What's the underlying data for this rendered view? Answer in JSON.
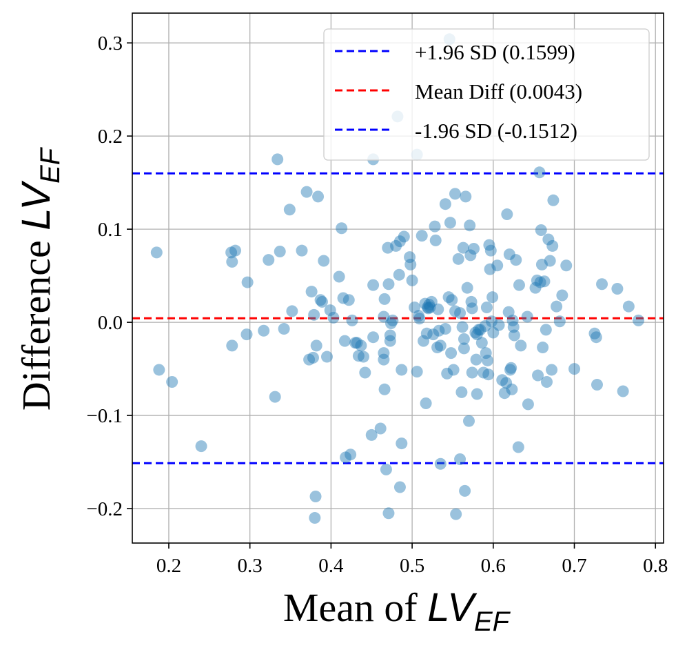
{
  "chart_data": {
    "type": "scatter",
    "title": "",
    "xlabel": {
      "prefix": "Mean of ",
      "var_main": "LV",
      "var_sub": "EF"
    },
    "ylabel": {
      "prefix": "Difference ",
      "var_main": "LV",
      "var_sub": "EF"
    },
    "xlim": [
      0.155,
      0.81
    ],
    "ylim": [
      -0.237,
      0.332
    ],
    "grid": true,
    "legend_position": "top-right",
    "xticks": [
      {
        "value": 0.2,
        "label": "0.2"
      },
      {
        "value": 0.3,
        "label": "0.3"
      },
      {
        "value": 0.4,
        "label": "0.4"
      },
      {
        "value": 0.5,
        "label": "0.5"
      },
      {
        "value": 0.6,
        "label": "0.6"
      },
      {
        "value": 0.7,
        "label": "0.7"
      },
      {
        "value": 0.8,
        "label": "0.8"
      }
    ],
    "yticks": [
      {
        "value": -0.2,
        "label": "−0.2"
      },
      {
        "value": -0.1,
        "label": "−0.1"
      },
      {
        "value": 0.0,
        "label": "0.0"
      },
      {
        "value": 0.1,
        "label": "0.1"
      },
      {
        "value": 0.2,
        "label": "0.2"
      },
      {
        "value": 0.3,
        "label": "0.3"
      }
    ],
    "reference_lines": [
      {
        "name": "+1.96 SD (0.1599)",
        "y": 0.1599,
        "color": "#0000ff"
      },
      {
        "name": "Mean Diff (0.0043)",
        "y": 0.0043,
        "color": "#ff0000"
      },
      {
        "name": "-1.96 SD (-0.1512)",
        "y": -0.1512,
        "color": "#0000ff"
      }
    ],
    "series": [
      {
        "name": "points",
        "color": "#1f77b4",
        "points": [
          [
            0.185,
            0.075
          ],
          [
            0.188,
            -0.051
          ],
          [
            0.204,
            -0.064
          ],
          [
            0.24,
            -0.133
          ],
          [
            0.277,
            0.075
          ],
          [
            0.278,
            0.065
          ],
          [
            0.278,
            -0.025
          ],
          [
            0.282,
            0.077
          ],
          [
            0.296,
            -0.013
          ],
          [
            0.297,
            0.043
          ],
          [
            0.317,
            -0.009
          ],
          [
            0.323,
            0.067
          ],
          [
            0.331,
            -0.08
          ],
          [
            0.334,
            0.175
          ],
          [
            0.337,
            0.076
          ],
          [
            0.342,
            -0.007
          ],
          [
            0.349,
            0.121
          ],
          [
            0.352,
            0.012
          ],
          [
            0.364,
            0.077
          ],
          [
            0.37,
            0.14
          ],
          [
            0.373,
            -0.04
          ],
          [
            0.376,
            0.033
          ],
          [
            0.378,
            -0.038
          ],
          [
            0.379,
            0.008
          ],
          [
            0.38,
            -0.21
          ],
          [
            0.381,
            -0.187
          ],
          [
            0.382,
            -0.025
          ],
          [
            0.384,
            0.135
          ],
          [
            0.387,
            0.024
          ],
          [
            0.389,
            0.022
          ],
          [
            0.391,
            0.066
          ],
          [
            0.395,
            -0.037
          ],
          [
            0.399,
            0.013
          ],
          [
            0.403,
            0.005
          ],
          [
            0.41,
            0.049
          ],
          [
            0.413,
            0.101
          ],
          [
            0.415,
            0.026
          ],
          [
            0.417,
            -0.02
          ],
          [
            0.418,
            -0.145
          ],
          [
            0.422,
            0.024
          ],
          [
            0.424,
            -0.142
          ],
          [
            0.426,
            0.002
          ],
          [
            0.43,
            -0.022
          ],
          [
            0.432,
            -0.022
          ],
          [
            0.434,
            -0.036
          ],
          [
            0.437,
            -0.025
          ],
          [
            0.44,
            -0.037
          ],
          [
            0.442,
            -0.054
          ],
          [
            0.45,
            -0.121
          ],
          [
            0.452,
            0.04
          ],
          [
            0.452,
            -0.016
          ],
          [
            0.452,
            0.175
          ],
          [
            0.461,
            -0.114
          ],
          [
            0.465,
            0.006
          ],
          [
            0.465,
            -0.033
          ],
          [
            0.465,
            -0.04
          ],
          [
            0.466,
            0.025
          ],
          [
            0.466,
            -0.072
          ],
          [
            0.468,
            -0.158
          ],
          [
            0.47,
            0.08
          ],
          [
            0.471,
            -0.205
          ],
          [
            0.471,
            0.041
          ],
          [
            0.473,
            -0.02
          ],
          [
            0.473,
            -0.014
          ],
          [
            0.474,
            -0.001
          ],
          [
            0.476,
            0.002
          ],
          [
            0.48,
            0.082
          ],
          [
            0.482,
            0.221
          ],
          [
            0.484,
            0.051
          ],
          [
            0.485,
            -0.177
          ],
          [
            0.485,
            0.087
          ],
          [
            0.487,
            -0.13
          ],
          [
            0.487,
            -0.051
          ],
          [
            0.49,
            0.092
          ],
          [
            0.497,
            0.07
          ],
          [
            0.498,
            0.062
          ],
          [
            0.5,
            0.045
          ],
          [
            0.503,
            0.016
          ],
          [
            0.506,
            0.18
          ],
          [
            0.506,
            -0.053
          ],
          [
            0.508,
            0.007
          ],
          [
            0.509,
            0.004
          ],
          [
            0.512,
            0.093
          ],
          [
            0.514,
            -0.02
          ],
          [
            0.516,
            0.02
          ],
          [
            0.517,
            -0.087
          ],
          [
            0.518,
            -0.012
          ],
          [
            0.519,
            0.016
          ],
          [
            0.52,
            0.015
          ],
          [
            0.521,
            0.019
          ],
          [
            0.522,
            0.016
          ],
          [
            0.524,
            0.022
          ],
          [
            0.526,
            -0.013
          ],
          [
            0.528,
            0.103
          ],
          [
            0.529,
            0.088
          ],
          [
            0.531,
            -0.027
          ],
          [
            0.532,
            0.014
          ],
          [
            0.533,
            -0.009
          ],
          [
            0.535,
            -0.152
          ],
          [
            0.535,
            -0.025
          ],
          [
            0.541,
            0.127
          ],
          [
            0.541,
            -0.007
          ],
          [
            0.543,
            -0.055
          ],
          [
            0.545,
            0.027
          ],
          [
            0.546,
            0.304
          ],
          [
            0.547,
            0.107
          ],
          [
            0.548,
            -0.033
          ],
          [
            0.549,
            0.024
          ],
          [
            0.551,
            -0.051
          ],
          [
            0.553,
            0.012
          ],
          [
            0.553,
            0.138
          ],
          [
            0.554,
            -0.206
          ],
          [
            0.557,
            0.068
          ],
          [
            0.559,
            0.01
          ],
          [
            0.559,
            -0.147
          ],
          [
            0.561,
            -0.075
          ],
          [
            0.562,
            -0.005
          ],
          [
            0.563,
            0.08
          ],
          [
            0.564,
            -0.028
          ],
          [
            0.564,
            -0.018
          ],
          [
            0.565,
            -0.181
          ],
          [
            0.566,
            0.135
          ],
          [
            0.568,
            0.037
          ],
          [
            0.57,
            -0.106
          ],
          [
            0.571,
            0.104
          ],
          [
            0.572,
            0.072
          ],
          [
            0.573,
            0.022
          ],
          [
            0.574,
            -0.054
          ],
          [
            0.574,
            0.015
          ],
          [
            0.576,
            0.079
          ],
          [
            0.578,
            -0.011
          ],
          [
            0.579,
            -0.04
          ],
          [
            0.58,
            -0.013
          ],
          [
            0.58,
            -0.077
          ],
          [
            0.582,
            -0.008
          ],
          [
            0.584,
            -0.008
          ],
          [
            0.586,
            -0.022
          ],
          [
            0.588,
            -0.054
          ],
          [
            0.59,
            -0.004
          ],
          [
            0.591,
            -0.033
          ],
          [
            0.592,
            0.016
          ],
          [
            0.593,
            -0.041
          ],
          [
            0.594,
            -0.056
          ],
          [
            0.595,
            0.083
          ],
          [
            0.596,
            0.057
          ],
          [
            0.597,
            0.077
          ],
          [
            0.598,
            0.001
          ],
          [
            0.599,
            0.027
          ],
          [
            0.6,
            -0.011
          ],
          [
            0.605,
            0.061
          ],
          [
            0.607,
            -0.003
          ],
          [
            0.611,
            -0.062
          ],
          [
            0.614,
            -0.076
          ],
          [
            0.616,
            -0.065
          ],
          [
            0.617,
            0.116
          ],
          [
            0.619,
            0.011
          ],
          [
            0.62,
            0.073
          ],
          [
            0.621,
            -0.051
          ],
          [
            0.622,
            -0.049
          ],
          [
            0.623,
            -0.072
          ],
          [
            0.624,
            0.002
          ],
          [
            0.625,
            -0.005
          ],
          [
            0.626,
            -0.014
          ],
          [
            0.628,
            0.067
          ],
          [
            0.631,
            -0.134
          ],
          [
            0.632,
            0.04
          ],
          [
            0.634,
            -0.025
          ],
          [
            0.642,
            0.006
          ],
          [
            0.643,
            -0.088
          ],
          [
            0.652,
            0.037
          ],
          [
            0.654,
            0.045
          ],
          [
            0.655,
            -0.057
          ],
          [
            0.657,
            0.161
          ],
          [
            0.658,
            0.043
          ],
          [
            0.659,
            0.099
          ],
          [
            0.66,
            0.062
          ],
          [
            0.661,
            -0.027
          ],
          [
            0.663,
            0.044
          ],
          [
            0.665,
            -0.008
          ],
          [
            0.666,
            -0.064
          ],
          [
            0.668,
            0.089
          ],
          [
            0.67,
            0.066
          ],
          [
            0.672,
            -0.051
          ],
          [
            0.673,
            0.082
          ],
          [
            0.674,
            0.131
          ],
          [
            0.678,
            0.017
          ],
          [
            0.682,
            0.001
          ],
          [
            0.685,
            0.029
          ],
          [
            0.69,
            0.061
          ],
          [
            0.7,
            -0.05
          ],
          [
            0.725,
            -0.012
          ],
          [
            0.727,
            -0.016
          ],
          [
            0.728,
            -0.067
          ],
          [
            0.734,
            0.041
          ],
          [
            0.753,
            0.036
          ],
          [
            0.76,
            -0.074
          ],
          [
            0.767,
            0.017
          ],
          [
            0.779,
            0.002
          ]
        ]
      }
    ]
  }
}
